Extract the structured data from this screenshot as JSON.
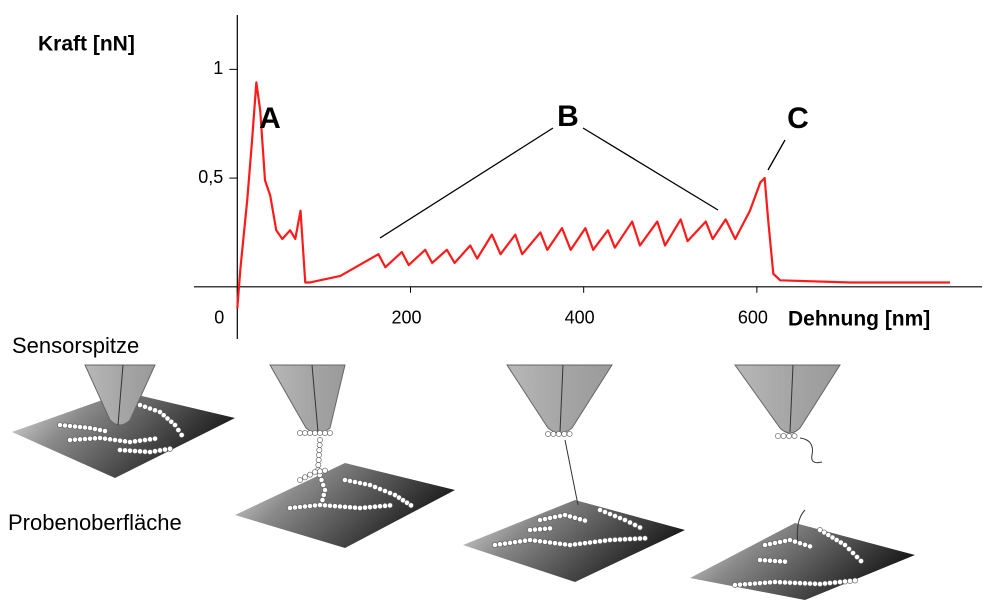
{
  "chart_data": {
    "type": "line",
    "y_label": "Kraft  [nN]",
    "x_label": "Dehnung [nm]",
    "x": [
      0,
      3.5,
      11.5,
      17,
      22,
      26.5,
      32,
      38,
      45,
      52,
      61,
      67,
      73,
      78.5,
      84,
      119,
      163,
      171,
      190,
      198,
      217,
      225,
      242,
      251,
      269,
      277,
      294,
      304,
      321,
      329,
      350,
      358,
      375,
      385,
      402,
      411,
      428,
      436,
      456,
      465,
      485,
      494,
      512,
      520,
      541,
      549,
      564,
      575,
      592,
      604,
      609,
      613,
      619,
      627,
      708,
      823
    ],
    "values": [
      -0.1,
      0.08,
      0.4,
      0.67,
      0.94,
      0.81,
      0.49,
      0.42,
      0.26,
      0.22,
      0.26,
      0.22,
      0.35,
      0.02,
      0.02,
      0.05,
      0.15,
      0.09,
      0.16,
      0.1,
      0.17,
      0.11,
      0.17,
      0.11,
      0.19,
      0.13,
      0.24,
      0.15,
      0.24,
      0.15,
      0.25,
      0.17,
      0.27,
      0.17,
      0.27,
      0.17,
      0.26,
      0.18,
      0.3,
      0.19,
      0.3,
      0.19,
      0.31,
      0.21,
      0.3,
      0.22,
      0.31,
      0.22,
      0.35,
      0.48,
      0.5,
      0.31,
      0.06,
      0.03,
      0.02,
      0.02
    ],
    "color": "#ff1a1a",
    "xlim": [
      -50,
      860
    ],
    "ylim": [
      -0.24,
      1.25
    ],
    "xticks": [
      0,
      200,
      400,
      600
    ],
    "yticks": [
      {
        "value": 0.5,
        "label": "0,5"
      },
      1
    ],
    "annotations": [
      "A",
      "B",
      "C"
    ]
  },
  "illustration": {
    "tip_label": "Sensorspitze",
    "surface_label": "Probenoberfläche"
  }
}
